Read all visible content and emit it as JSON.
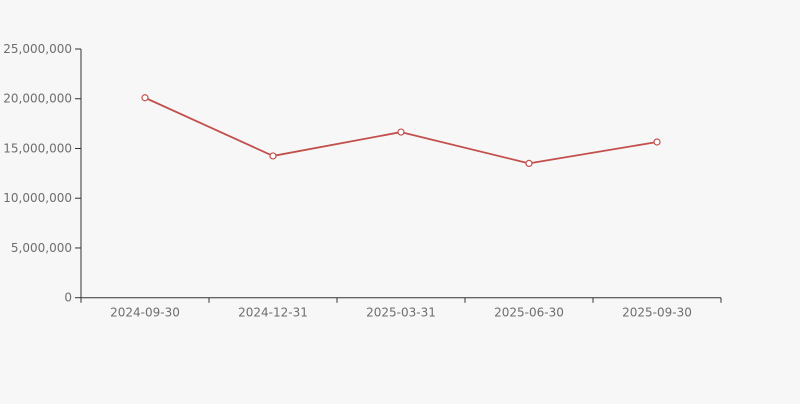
{
  "chart_data": {
    "type": "line",
    "title": "",
    "xlabel": "",
    "ylabel": "",
    "categories": [
      "2024-09-30",
      "2024-12-31",
      "2025-03-31",
      "2025-06-30",
      "2025-09-30"
    ],
    "series": [
      {
        "name": "value",
        "values": [
          20100000,
          14250000,
          16650000,
          13500000,
          15650000
        ]
      }
    ],
    "ylim": [
      0,
      25000000
    ],
    "ytick_step": 5000000,
    "ytick_labels": [
      "0",
      "5,000,000",
      "10,000,000",
      "15,000,000",
      "20,000,000",
      "25,000,000"
    ],
    "grid": false,
    "legend": false,
    "marker": "open-circle",
    "colors": {
      "line": "#c2504d",
      "marker_fill": "#ffffff",
      "axis": "#333333",
      "tick_label": "#6e6e6e",
      "background": "#f7f7f7"
    }
  }
}
